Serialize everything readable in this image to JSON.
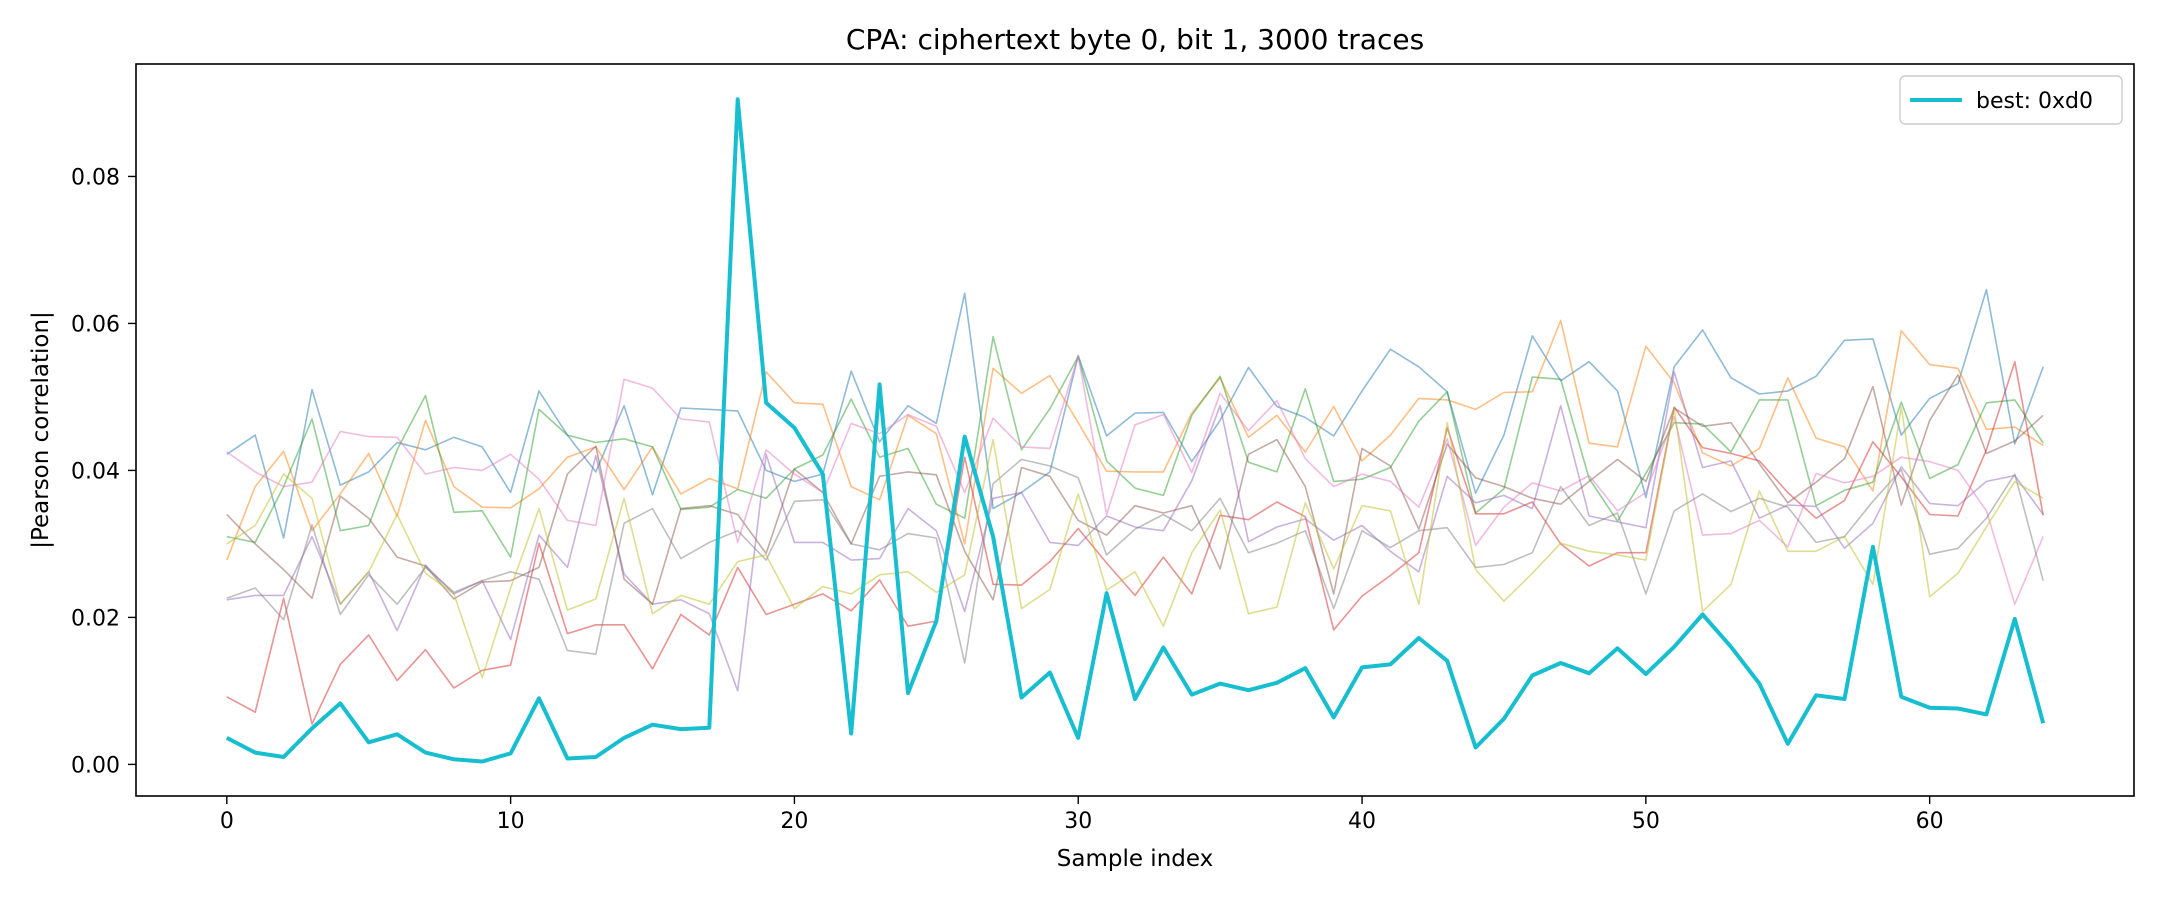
{
  "chart_data": {
    "type": "line",
    "title": "CPA: ciphertext byte 0, bit 1, 3000 traces",
    "xlabel": "Sample index",
    "ylabel": "|Pearson correlation|",
    "xlim": [
      -3.2,
      67.2
    ],
    "ylim": [
      -0.0043,
      0.0953
    ],
    "x_ticks": [
      0,
      10,
      20,
      30,
      40,
      50,
      60
    ],
    "y_ticks": [
      0.0,
      0.02,
      0.04,
      0.06,
      0.08
    ],
    "y_tick_labels": [
      "0.00",
      "0.02",
      "0.04",
      "0.06",
      "0.08"
    ],
    "x": [
      0,
      1,
      2,
      3,
      4,
      5,
      6,
      7,
      8,
      9,
      10,
      11,
      12,
      13,
      14,
      15,
      16,
      17,
      18,
      19,
      20,
      21,
      22,
      23,
      24,
      25,
      26,
      27,
      28,
      29,
      30,
      31,
      32,
      33,
      34,
      35,
      36,
      37,
      38,
      39,
      40,
      41,
      42,
      43,
      44,
      45,
      46,
      47,
      48,
      49,
      50,
      51,
      52,
      53,
      54,
      55,
      56,
      57,
      58,
      59,
      60,
      61,
      62,
      63,
      64
    ],
    "grid": false,
    "legend": {
      "position": "top-right",
      "entries": [
        "best: 0xd0"
      ]
    },
    "best_series": {
      "name": "best: 0xd0",
      "color": "#17becf",
      "values": [
        0.0036,
        0.0016,
        0.001,
        0.0049,
        0.0083,
        0.003,
        0.0041,
        0.0016,
        0.0007,
        0.0004,
        0.0015,
        0.009,
        0.0008,
        0.001,
        0.0036,
        0.0054,
        0.0048,
        0.005,
        0.0905,
        0.0492,
        0.0458,
        0.0395,
        0.0042,
        0.0517,
        0.0097,
        0.0195,
        0.0446,
        0.031,
        0.0091,
        0.0125,
        0.0036,
        0.0233,
        0.0089,
        0.0159,
        0.0095,
        0.011,
        0.0101,
        0.0111,
        0.0131,
        0.0064,
        0.0132,
        0.0136,
        0.0172,
        0.0141,
        0.0023,
        0.0062,
        0.0121,
        0.0138,
        0.0124,
        0.0158,
        0.0123,
        0.016,
        0.0204,
        0.016,
        0.011,
        0.0028,
        0.0094,
        0.0089,
        0.0296,
        0.0092,
        0.0077,
        0.0076,
        0.0068,
        0.0198,
        0.0056
      ]
    },
    "background_series": [
      {
        "color": "#1f77b4",
        "values": [
          0.0422,
          0.0448,
          0.0308,
          0.051,
          0.038,
          0.0398,
          0.0438,
          0.0428,
          0.0445,
          0.0432,
          0.037,
          0.0508,
          0.0448,
          0.0398,
          0.0488,
          0.0367,
          0.0485,
          0.0483,
          0.0481,
          0.04,
          0.0385,
          0.0395,
          0.0535,
          0.0439,
          0.0488,
          0.0464,
          0.0641,
          0.0348,
          0.037,
          0.0398,
          0.0556,
          0.0447,
          0.0478,
          0.0479,
          0.0412,
          0.0468,
          0.054,
          0.0487,
          0.0472,
          0.0447,
          0.0508,
          0.0565,
          0.0541,
          0.0507,
          0.0369,
          0.0448,
          0.0583,
          0.0522,
          0.0548,
          0.0508,
          0.0363,
          0.0541,
          0.0591,
          0.0526,
          0.0504,
          0.0508,
          0.0528,
          0.0577,
          0.0579,
          0.0448,
          0.0498,
          0.0518,
          0.0646,
          0.0436,
          0.0541
        ]
      },
      {
        "color": "#ff7f0e",
        "values": [
          0.0278,
          0.0378,
          0.0426,
          0.0318,
          0.0368,
          0.0423,
          0.0338,
          0.0468,
          0.0378,
          0.035,
          0.0349,
          0.0375,
          0.0418,
          0.0432,
          0.0374,
          0.0432,
          0.0368,
          0.0389,
          0.0375,
          0.0534,
          0.0492,
          0.049,
          0.0378,
          0.036,
          0.0475,
          0.045,
          0.03,
          0.0539,
          0.0505,
          0.0529,
          0.0465,
          0.0399,
          0.0398,
          0.0398,
          0.0478,
          0.0526,
          0.0445,
          0.0475,
          0.0425,
          0.0487,
          0.0413,
          0.0448,
          0.0498,
          0.0496,
          0.0483,
          0.0506,
          0.0507,
          0.0604,
          0.0437,
          0.0432,
          0.0569,
          0.0519,
          0.0424,
          0.0406,
          0.043,
          0.0526,
          0.0444,
          0.0432,
          0.0372,
          0.059,
          0.0544,
          0.0539,
          0.0456,
          0.0459,
          0.0434
        ]
      },
      {
        "color": "#2ca02c",
        "values": [
          0.031,
          0.0302,
          0.0378,
          0.047,
          0.0318,
          0.0325,
          0.0428,
          0.0502,
          0.0343,
          0.0345,
          0.0282,
          0.0483,
          0.0448,
          0.0438,
          0.0443,
          0.0432,
          0.0347,
          0.035,
          0.0374,
          0.0362,
          0.0402,
          0.0421,
          0.0497,
          0.0418,
          0.043,
          0.0354,
          0.0335,
          0.0582,
          0.0428,
          0.0484,
          0.0555,
          0.0413,
          0.0376,
          0.0366,
          0.0475,
          0.0528,
          0.0411,
          0.0398,
          0.0511,
          0.0385,
          0.0388,
          0.0404,
          0.0467,
          0.0507,
          0.0342,
          0.0375,
          0.0527,
          0.0524,
          0.0389,
          0.0331,
          0.0396,
          0.0465,
          0.0463,
          0.0425,
          0.0496,
          0.0496,
          0.0352,
          0.0373,
          0.0384,
          0.0493,
          0.0389,
          0.0408,
          0.0492,
          0.0496,
          0.0437
        ]
      },
      {
        "color": "#d62728",
        "values": [
          0.0092,
          0.0071,
          0.0226,
          0.0055,
          0.0136,
          0.0176,
          0.0114,
          0.0156,
          0.0104,
          0.0128,
          0.0135,
          0.0301,
          0.0178,
          0.019,
          0.019,
          0.013,
          0.0204,
          0.0176,
          0.0268,
          0.0204,
          0.0218,
          0.0232,
          0.0209,
          0.0251,
          0.0188,
          0.0195,
          0.0418,
          0.0245,
          0.0244,
          0.0276,
          0.0321,
          0.0274,
          0.023,
          0.0282,
          0.0232,
          0.0339,
          0.0333,
          0.0357,
          0.0337,
          0.0183,
          0.0229,
          0.0257,
          0.0288,
          0.0458,
          0.0341,
          0.0341,
          0.0357,
          0.03,
          0.027,
          0.0288,
          0.0288,
          0.0486,
          0.0431,
          0.0423,
          0.0413,
          0.037,
          0.0335,
          0.0359,
          0.0439,
          0.0391,
          0.034,
          0.0338,
          0.0428,
          0.0548,
          0.0339
        ]
      },
      {
        "color": "#9467bd",
        "values": [
          0.0224,
          0.023,
          0.023,
          0.031,
          0.0218,
          0.0262,
          0.0182,
          0.0271,
          0.0232,
          0.025,
          0.017,
          0.0312,
          0.0268,
          0.042,
          0.0259,
          0.0218,
          0.0224,
          0.0205,
          0.01,
          0.0422,
          0.0302,
          0.0302,
          0.0278,
          0.028,
          0.0348,
          0.0318,
          0.0208,
          0.0362,
          0.037,
          0.0302,
          0.0298,
          0.0338,
          0.0323,
          0.0318,
          0.0386,
          0.0488,
          0.0303,
          0.0323,
          0.0334,
          0.0305,
          0.0325,
          0.029,
          0.0262,
          0.0392,
          0.0356,
          0.0366,
          0.0348,
          0.0488,
          0.0338,
          0.033,
          0.0322,
          0.0534,
          0.0404,
          0.0413,
          0.0335,
          0.0353,
          0.0351,
          0.0294,
          0.0328,
          0.0405,
          0.0355,
          0.0352,
          0.0385,
          0.0393,
          0.034
        ]
      },
      {
        "color": "#8c564b",
        "values": [
          0.034,
          0.03,
          0.0265,
          0.0226,
          0.0365,
          0.0335,
          0.0282,
          0.027,
          0.0225,
          0.0248,
          0.025,
          0.0268,
          0.0395,
          0.0433,
          0.0252,
          0.0218,
          0.0348,
          0.0352,
          0.034,
          0.0287,
          0.0402,
          0.037,
          0.03,
          0.0392,
          0.0398,
          0.0394,
          0.029,
          0.0224,
          0.0404,
          0.0392,
          0.0332,
          0.0312,
          0.0352,
          0.0342,
          0.0352,
          0.0266,
          0.0422,
          0.0442,
          0.0378,
          0.0232,
          0.043,
          0.0406,
          0.032,
          0.0436,
          0.039,
          0.0378,
          0.0362,
          0.0354,
          0.0385,
          0.0415,
          0.0385,
          0.0485,
          0.046,
          0.0465,
          0.0409,
          0.0356,
          0.0384,
          0.0416,
          0.0514,
          0.0353,
          0.0468,
          0.053,
          0.0423,
          0.044,
          0.0475
        ]
      },
      {
        "color": "#e377c2",
        "values": [
          0.0425,
          0.0398,
          0.0378,
          0.0384,
          0.0453,
          0.0446,
          0.0445,
          0.0395,
          0.0404,
          0.04,
          0.0422,
          0.0388,
          0.0332,
          0.0325,
          0.0524,
          0.0512,
          0.047,
          0.0466,
          0.0302,
          0.0428,
          0.0395,
          0.037,
          0.0464,
          0.045,
          0.0476,
          0.046,
          0.037,
          0.0471,
          0.0432,
          0.043,
          0.0556,
          0.034,
          0.0462,
          0.0476,
          0.0397,
          0.0505,
          0.0454,
          0.0495,
          0.0416,
          0.0378,
          0.0395,
          0.0385,
          0.035,
          0.0443,
          0.0298,
          0.035,
          0.0383,
          0.0372,
          0.0393,
          0.0345,
          0.037,
          0.0473,
          0.0312,
          0.0314,
          0.0332,
          0.0296,
          0.0396,
          0.0383,
          0.0392,
          0.0418,
          0.0412,
          0.04,
          0.0345,
          0.0218,
          0.031
        ]
      },
      {
        "color": "#7f7f7f",
        "values": [
          0.0226,
          0.024,
          0.0197,
          0.0326,
          0.0204,
          0.0258,
          0.0218,
          0.0268,
          0.0234,
          0.025,
          0.0262,
          0.0252,
          0.0155,
          0.015,
          0.0328,
          0.0348,
          0.028,
          0.0302,
          0.0318,
          0.0278,
          0.0358,
          0.036,
          0.03,
          0.0292,
          0.0314,
          0.0308,
          0.0138,
          0.0382,
          0.0415,
          0.0406,
          0.039,
          0.0285,
          0.032,
          0.034,
          0.0318,
          0.0362,
          0.0288,
          0.0301,
          0.0318,
          0.0212,
          0.0318,
          0.0295,
          0.0318,
          0.0322,
          0.0268,
          0.0272,
          0.0288,
          0.0378,
          0.0325,
          0.0342,
          0.0232,
          0.0345,
          0.0368,
          0.0344,
          0.0362,
          0.035,
          0.0302,
          0.031,
          0.0358,
          0.0401,
          0.0286,
          0.0294,
          0.0335,
          0.0395,
          0.025
        ]
      },
      {
        "color": "#bcbd22",
        "values": [
          0.03,
          0.0325,
          0.0395,
          0.0362,
          0.0218,
          0.0262,
          0.034,
          0.026,
          0.0232,
          0.0118,
          0.024,
          0.0348,
          0.021,
          0.0225,
          0.0362,
          0.0205,
          0.023,
          0.0218,
          0.0276,
          0.0285,
          0.0212,
          0.0242,
          0.0232,
          0.0258,
          0.0262,
          0.0234,
          0.0258,
          0.0442,
          0.0212,
          0.0238,
          0.0368,
          0.0237,
          0.0262,
          0.0188,
          0.0288,
          0.0346,
          0.0205,
          0.0214,
          0.0356,
          0.0266,
          0.0352,
          0.0345,
          0.0218,
          0.0465,
          0.0265,
          0.0222,
          0.026,
          0.0301,
          0.029,
          0.0285,
          0.0278,
          0.0485,
          0.0208,
          0.0245,
          0.0372,
          0.029,
          0.029,
          0.031,
          0.0245,
          0.0486,
          0.0228,
          0.026,
          0.0323,
          0.0385,
          0.0362
        ]
      }
    ]
  }
}
